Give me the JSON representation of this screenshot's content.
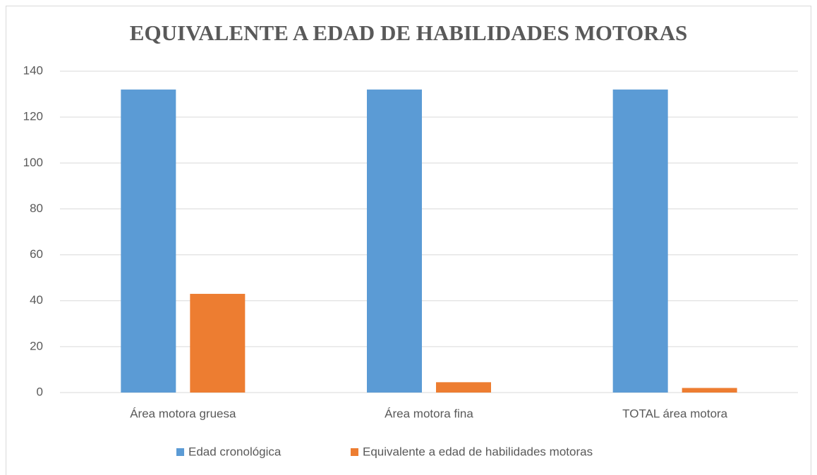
{
  "chart_data": {
    "type": "bar",
    "title": "EQUIVALENTE A EDAD DE HABILIDADES MOTORAS",
    "categories": [
      "Área motora gruesa",
      "Área motora fina",
      "TOTAL área motora"
    ],
    "series": [
      {
        "name": "Edad cronológica",
        "color": "#5b9bd5",
        "values": [
          132,
          132,
          132
        ]
      },
      {
        "name": "Equivalente a edad de habilidades motoras",
        "color": "#ed7d31",
        "values": [
          43,
          4.5,
          2
        ]
      }
    ],
    "ylim": [
      0,
      140
    ],
    "yticks": [
      0,
      20,
      40,
      60,
      80,
      100,
      120,
      140
    ],
    "grid": true,
    "legend": "bottom"
  }
}
